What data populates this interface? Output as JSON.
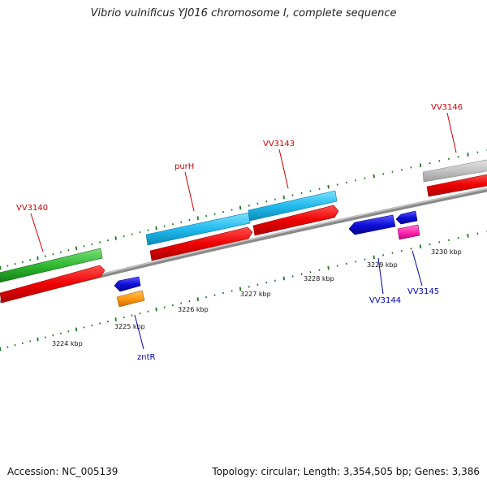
{
  "title": "Vibrio vulnificus YJ016 chromosome I, complete sequence",
  "footer": {
    "accession": "Accession: NC_005139",
    "summary": "Topology: circular; Length: 3,354,505 bp; Genes: 3,386"
  },
  "colors": {
    "forward_label": "#cc0000",
    "reverse_label": "#0000aa",
    "tick": "#1a7a1a",
    "backbone": "#8a8a8a"
  },
  "scale_labels": [
    "3224 kbp",
    "3225 kbp",
    "3226 kbp",
    "3227 kbp",
    "3228 kbp",
    "3229 kbp",
    "3230 kbp"
  ],
  "gene_labels": {
    "vv3140": "VV3140",
    "purh": "purH",
    "vv3143": "VV3143",
    "vv3146": "VV3146",
    "zntr": "zntR",
    "vv3144": "VV3144",
    "vv3145": "VV3145"
  }
}
